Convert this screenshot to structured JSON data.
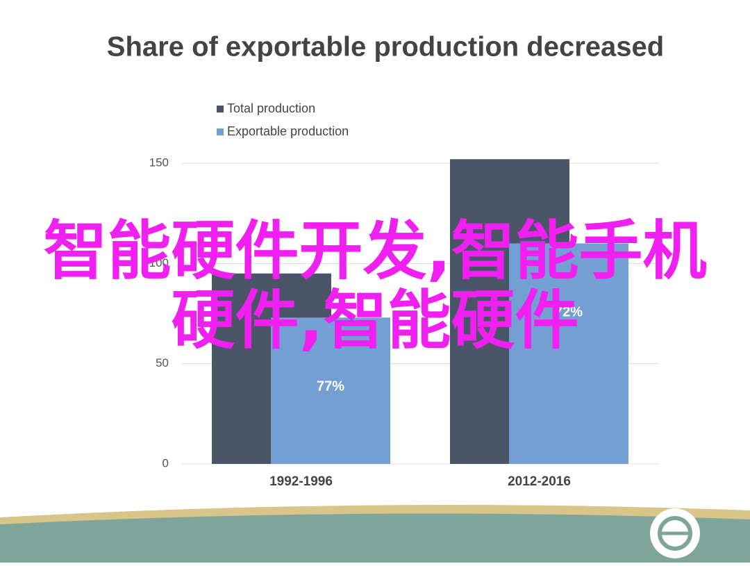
{
  "chart_data": {
    "type": "bar",
    "title": "Share of exportable production decreased",
    "categories": [
      "1992-1996",
      "2012-2016"
    ],
    "series": [
      {
        "name": "Total production",
        "color": "#4a5568",
        "values": [
          95,
          152
        ]
      },
      {
        "name": "Exportable production",
        "color": "#739fd2",
        "values": [
          73,
          110
        ]
      }
    ],
    "annotations": [
      "77%",
      "72%"
    ],
    "ylim": [
      0,
      150
    ],
    "yticks": [
      0,
      50,
      100,
      150
    ],
    "grid": true,
    "legend": "top"
  },
  "overlay_text": "智能硬件开发,智能手机硬件,智能硬件"
}
